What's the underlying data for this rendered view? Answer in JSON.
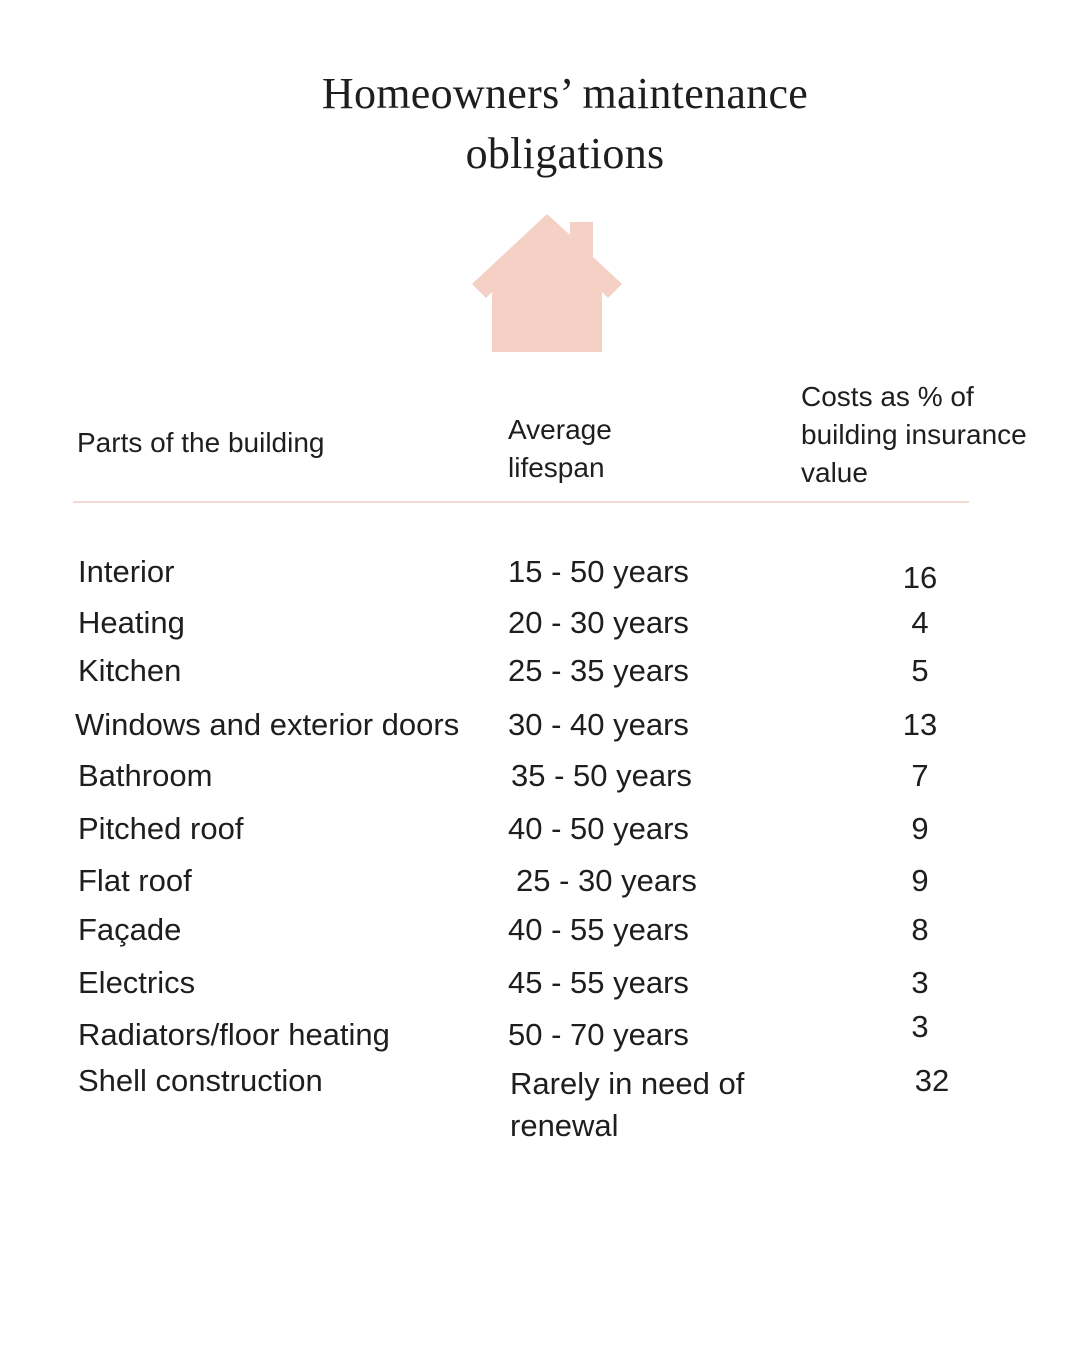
{
  "title_line1": "Homeowners’ maintenance",
  "title_line2": "obligations",
  "house_icon": "house-icon",
  "accent_color": "#f5d0c4",
  "divider_color": "#f1dcd4",
  "headers": {
    "part": "Parts of the building",
    "lifespan_line1": "Average",
    "lifespan_line2": "lifespan",
    "cost_line1": "Costs as % of",
    "cost_line2": "building insurance",
    "cost_line3": "value"
  },
  "rows": [
    {
      "part": "Interior",
      "lifespan": "15 - 50 years",
      "cost": "16"
    },
    {
      "part": "Heating",
      "lifespan": "20 - 30 years",
      "cost": "4"
    },
    {
      "part": "Kitchen",
      "lifespan": "25 - 35 years",
      "cost": "5"
    },
    {
      "part": "Windows and exterior doors",
      "lifespan": "30 - 40 years",
      "cost": "13"
    },
    {
      "part": "Bathroom",
      "lifespan": "35 - 50 years",
      "cost": "7"
    },
    {
      "part": "Pitched roof",
      "lifespan": "40 - 50 years",
      "cost": "9"
    },
    {
      "part": "Flat roof",
      "lifespan": "25 - 30 years",
      "cost": "9"
    },
    {
      "part": "Façade",
      "lifespan": "40 - 55 years",
      "cost": "8"
    },
    {
      "part": "Electrics",
      "lifespan": "45 - 55 years",
      "cost": "3"
    },
    {
      "part": "Radiators/floor heating",
      "lifespan": "50 - 70 years",
      "cost": "3"
    },
    {
      "part": "Shell construction",
      "lifespan": "Rarely in need of renewal",
      "cost": "32"
    }
  ]
}
